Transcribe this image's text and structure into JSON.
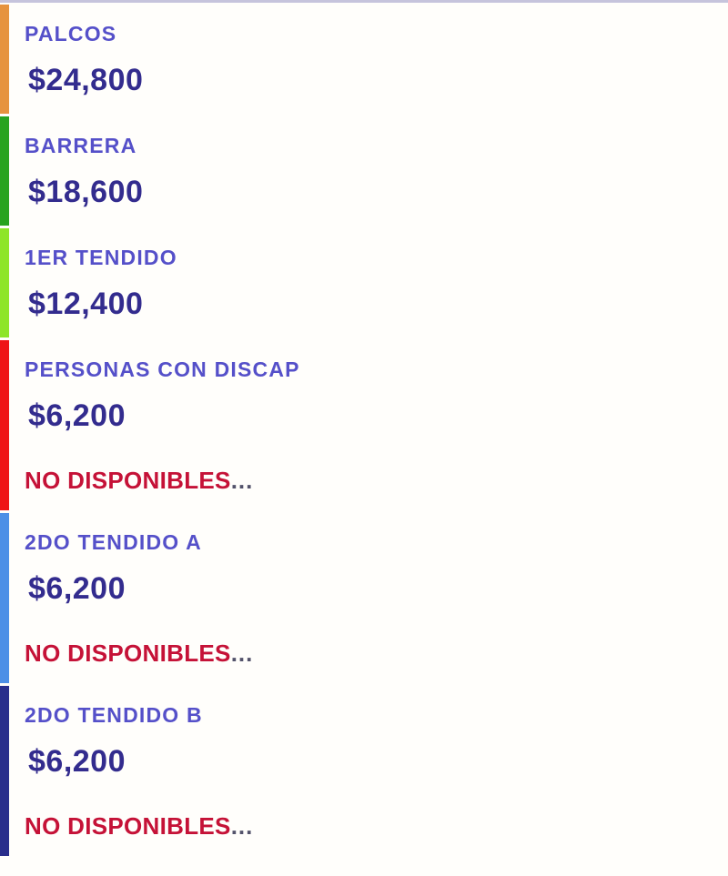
{
  "page": {
    "background_color": "#fffefb",
    "top_border_color": "#c6c4dc"
  },
  "text_colors": {
    "label": "#5550c9",
    "price": "#332c8e",
    "availability": "#c51237",
    "ellipsis": "#53536b"
  },
  "sections": [
    {
      "name": "PALCOS",
      "price": "$24,800",
      "color": "#e6933e"
    },
    {
      "name": "BARRERA",
      "price": "$18,600",
      "color": "#28a31f"
    },
    {
      "name": "1ER TENDIDO",
      "price": "$12,400",
      "color": "#8ee529"
    },
    {
      "name": "PERSONAS CON DISCAP",
      "price": "$6,200",
      "color": "#ef1416",
      "availability": "NO DISPONIBLES",
      "ellipsis": "..."
    },
    {
      "name": "2DO TENDIDO A",
      "price": "$6,200",
      "color": "#4d8fe6",
      "availability": "NO DISPONIBLES",
      "ellipsis": "..."
    },
    {
      "name": "2DO TENDIDO B",
      "price": "$6,200",
      "color": "#292e8c",
      "availability": "NO DISPONIBLES",
      "ellipsis": "..."
    }
  ]
}
